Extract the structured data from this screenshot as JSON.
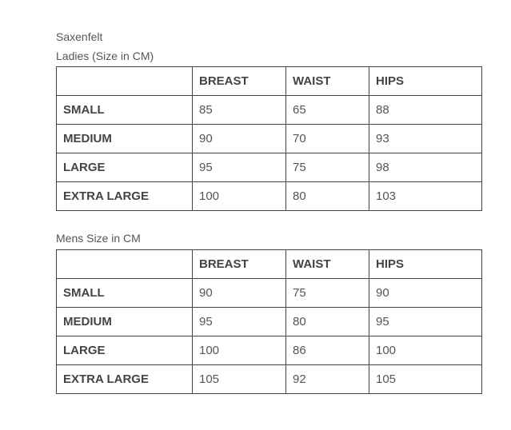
{
  "brand": "Saxenfelt",
  "tables": [
    {
      "caption": "Ladies (Size in CM)",
      "headers": [
        "",
        "BREAST",
        "WAIST",
        "HIPS"
      ],
      "rows": [
        [
          "SMALL",
          "85",
          "65",
          "88"
        ],
        [
          "MEDIUM",
          "90",
          "70",
          "93"
        ],
        [
          "LARGE",
          "95",
          "75",
          "98"
        ],
        [
          "EXTRA LARGE",
          "100",
          "80",
          "103"
        ]
      ]
    },
    {
      "caption": "Mens Size in CM",
      "headers": [
        "",
        "BREAST",
        "WAIST",
        "HIPS"
      ],
      "rows": [
        [
          "SMALL",
          "90",
          "75",
          "90"
        ],
        [
          "MEDIUM",
          "95",
          "80",
          "95"
        ],
        [
          "LARGE",
          "100",
          "86",
          "100"
        ],
        [
          "EXTRA LARGE",
          "105",
          "92",
          "105"
        ]
      ]
    }
  ]
}
